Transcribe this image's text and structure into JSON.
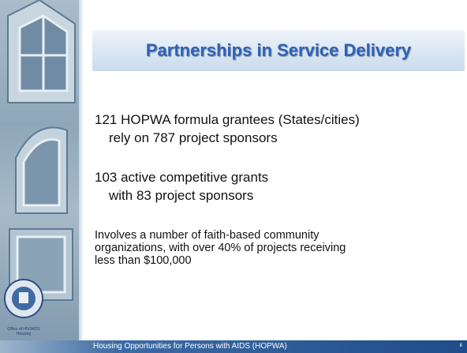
{
  "header": {
    "title": "Partnerships in Service Delivery"
  },
  "body": {
    "items": [
      {
        "lines": [
          "121 HOPWA formula grantees (States/cities)",
          "rely on 787 project sponsors"
        ]
      },
      {
        "lines": [
          "103 active competitive grants",
          "with 83 project sponsors"
        ]
      },
      {
        "lines": [
          "Involves a number of faith-based community",
          "organizations, with over 40% of projects receiving",
          "less than $100,000"
        ]
      }
    ]
  },
  "sidebar": {
    "office": [
      "Office of HIV/AIDS",
      "Housing"
    ]
  },
  "footer": {
    "text": "Housing Opportunities for Persons with AIDS (HOPWA)",
    "page": "8"
  }
}
